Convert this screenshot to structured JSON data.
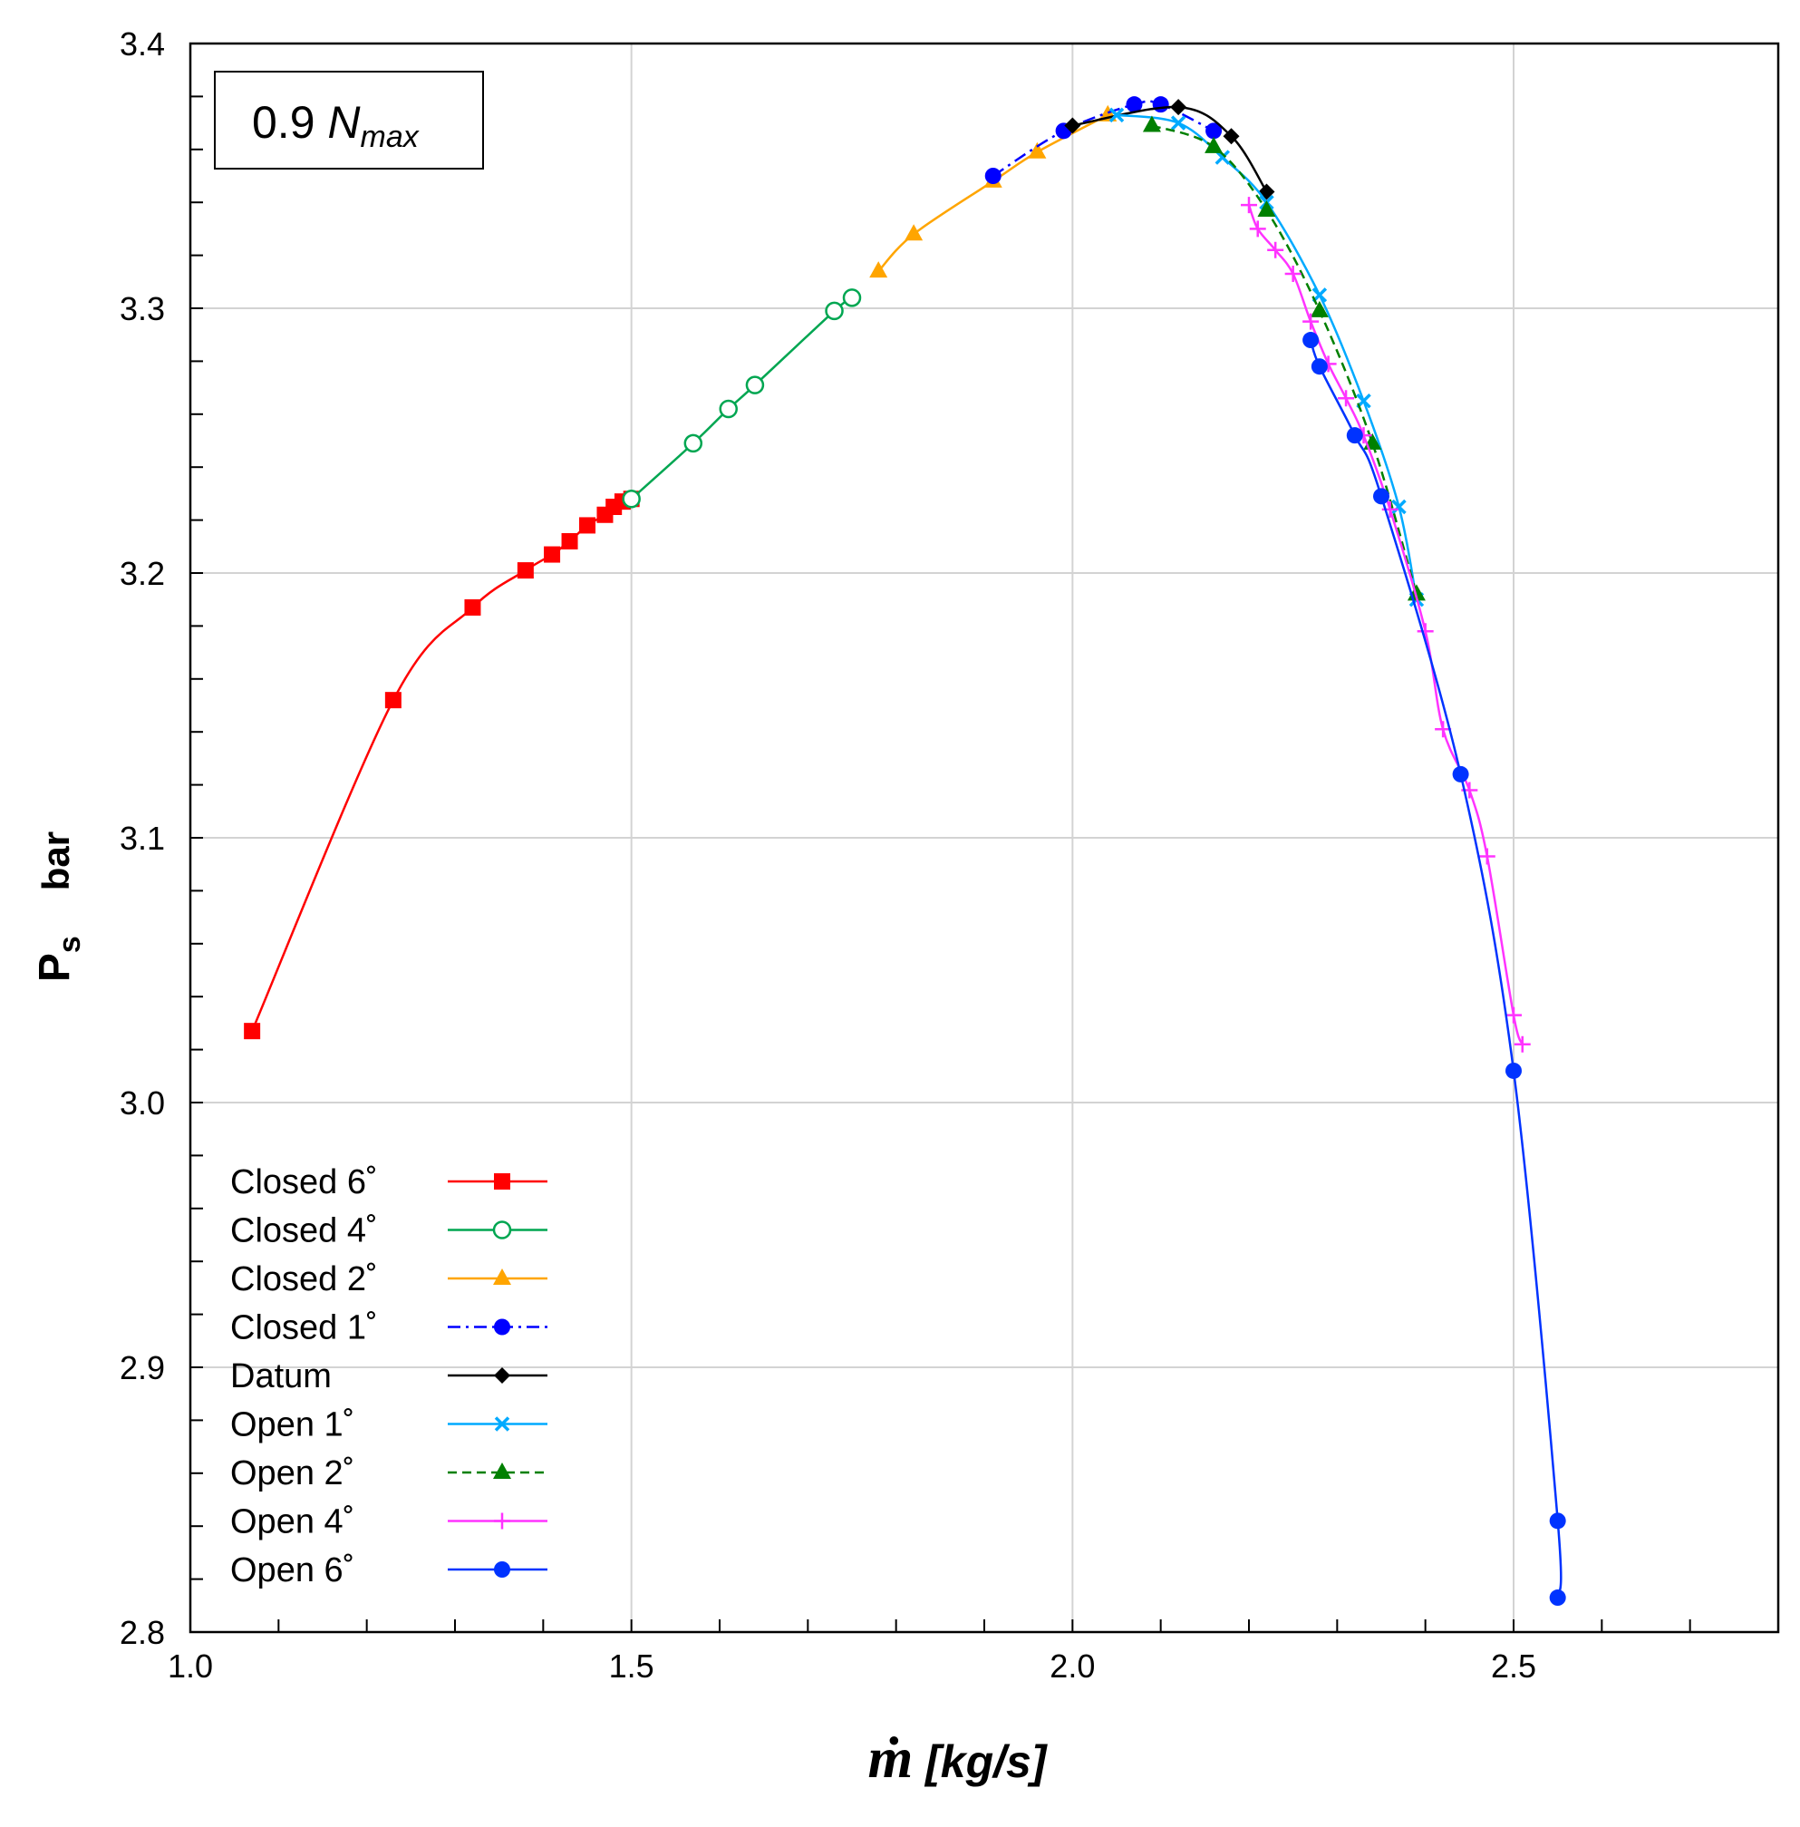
{
  "chart_data": {
    "type": "line",
    "title": "",
    "annotation": {
      "prefix": "0.9 ",
      "main": "N",
      "sub": "max"
    },
    "xlabel": {
      "main": "ṁ",
      "rest": " [kg/s]"
    },
    "ylabel": {
      "main": "P",
      "sub": "s",
      "unit": "bar"
    },
    "xlim": [
      1.0,
      2.8
    ],
    "ylim": [
      2.8,
      3.4
    ],
    "xticks": [
      1.0,
      1.5,
      2.0,
      2.5
    ],
    "xtick_labels": [
      "1.0",
      "1.5",
      "2.0",
      "2.5"
    ],
    "xminor_step": 0.1,
    "yticks": [
      2.8,
      2.9,
      3.0,
      3.1,
      3.2,
      3.3,
      3.4
    ],
    "ytick_labels": [
      "2.8",
      "2.9",
      "3.0",
      "3.1",
      "3.2",
      "3.3",
      "3.4"
    ],
    "yminor_step": 0.02,
    "grid": true,
    "legend_position": "bottom-left",
    "series": [
      {
        "name": "Closed 6",
        "unit": "˚",
        "color": "#ff0000",
        "marker": "square",
        "dash": "solid",
        "x": [
          1.07,
          1.23,
          1.32,
          1.38,
          1.41,
          1.43,
          1.45,
          1.47,
          1.48,
          1.49,
          1.5
        ],
        "y": [
          3.027,
          3.152,
          3.187,
          3.201,
          3.207,
          3.212,
          3.218,
          3.222,
          3.225,
          3.227,
          3.228
        ]
      },
      {
        "name": "Closed 4",
        "unit": "˚",
        "color": "#00a651",
        "marker": "circle-open",
        "dash": "solid",
        "x": [
          1.5,
          1.57,
          1.61,
          1.64,
          1.73,
          1.75
        ],
        "y": [
          3.228,
          3.249,
          3.262,
          3.271,
          3.299,
          3.304
        ]
      },
      {
        "name": "Closed 2",
        "unit": "˚",
        "color": "#ffa500",
        "marker": "triangle",
        "dash": "solid",
        "x": [
          1.78,
          1.82,
          1.91,
          1.96,
          2.04
        ],
        "y": [
          3.314,
          3.328,
          3.348,
          3.359,
          3.373
        ]
      },
      {
        "name": "Closed 1",
        "unit": "˚",
        "color": "#0000ff",
        "marker": "circle",
        "dash": "dashdot",
        "x": [
          1.91,
          1.99,
          2.07,
          2.1,
          2.16
        ],
        "y": [
          3.35,
          3.367,
          3.377,
          3.377,
          3.367
        ]
      },
      {
        "name": "Datum",
        "unit": "",
        "color": "#000000",
        "marker": "diamond",
        "dash": "solid",
        "x": [
          2.0,
          2.12,
          2.18,
          2.22
        ],
        "y": [
          3.369,
          3.376,
          3.365,
          3.344
        ]
      },
      {
        "name": "Open 1",
        "unit": "˚",
        "color": "#00aaff",
        "marker": "x",
        "dash": "solid",
        "x": [
          2.05,
          2.12,
          2.17,
          2.22,
          2.28,
          2.33,
          2.37,
          2.39
        ],
        "y": [
          3.373,
          3.37,
          3.357,
          3.34,
          3.305,
          3.265,
          3.225,
          3.19
        ]
      },
      {
        "name": "Open 2",
        "unit": "˚",
        "color": "#008000",
        "marker": "triangle",
        "dash": "dashed",
        "x": [
          2.09,
          2.16,
          2.22,
          2.28,
          2.34,
          2.39
        ],
        "y": [
          3.369,
          3.361,
          3.337,
          3.299,
          3.249,
          3.192
        ]
      },
      {
        "name": "Open 4",
        "unit": "˚",
        "color": "#ff33ff",
        "marker": "plus",
        "dash": "solid",
        "x": [
          2.2,
          2.21,
          2.23,
          2.25,
          2.27,
          2.29,
          2.31,
          2.33,
          2.36,
          2.4,
          2.42,
          2.45,
          2.47,
          2.5,
          2.51
        ],
        "y": [
          3.339,
          3.33,
          3.322,
          3.313,
          3.295,
          3.279,
          3.266,
          3.252,
          3.224,
          3.178,
          3.141,
          3.118,
          3.093,
          3.033,
          3.022
        ]
      },
      {
        "name": "Open 6",
        "unit": "˚",
        "color": "#0033ff",
        "marker": "circle",
        "dash": "solid",
        "x": [
          2.27,
          2.28,
          2.32,
          2.35,
          2.44,
          2.5,
          2.55,
          2.55
        ],
        "y": [
          3.288,
          3.278,
          3.252,
          3.229,
          3.124,
          3.012,
          2.842,
          2.813
        ]
      }
    ]
  }
}
